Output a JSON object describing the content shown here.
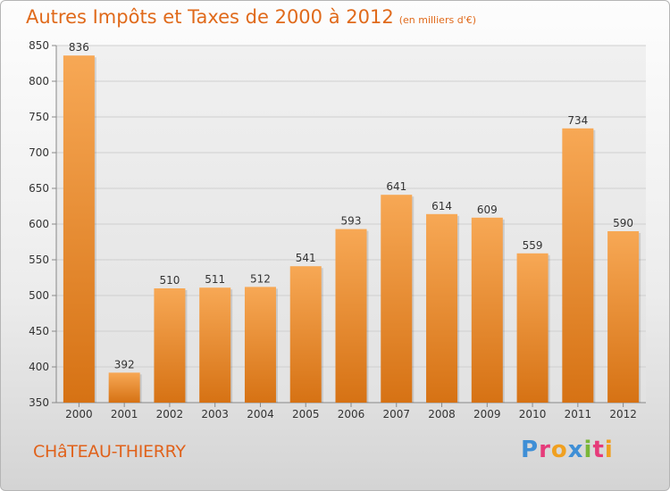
{
  "header": {
    "title": "Autres Impôts et Taxes de 2000 à 2012",
    "subtitle": "(en milliers d'€)"
  },
  "footer": {
    "city": "CHâTEAU-THIERRY",
    "brand": [
      "P",
      "r",
      "o",
      "x",
      "i",
      "t",
      "i"
    ]
  },
  "colors": {
    "bar_light": "#f6a650",
    "bar_dark": "#d87518",
    "title": "#e06a1b"
  },
  "chart_data": {
    "type": "bar",
    "title": "Autres Impôts et Taxes de 2000 à 2012",
    "subtitle": "(en milliers d'€)",
    "categories": [
      "2000",
      "2001",
      "2002",
      "2003",
      "2004",
      "2005",
      "2006",
      "2007",
      "2008",
      "2009",
      "2010",
      "2011",
      "2012"
    ],
    "values": [
      836,
      392,
      510,
      511,
      512,
      541,
      593,
      641,
      614,
      609,
      559,
      734,
      590
    ],
    "ylim": [
      350,
      850
    ],
    "yticks": [
      350,
      400,
      450,
      500,
      550,
      600,
      650,
      700,
      750,
      800,
      850
    ],
    "grid": true
  }
}
